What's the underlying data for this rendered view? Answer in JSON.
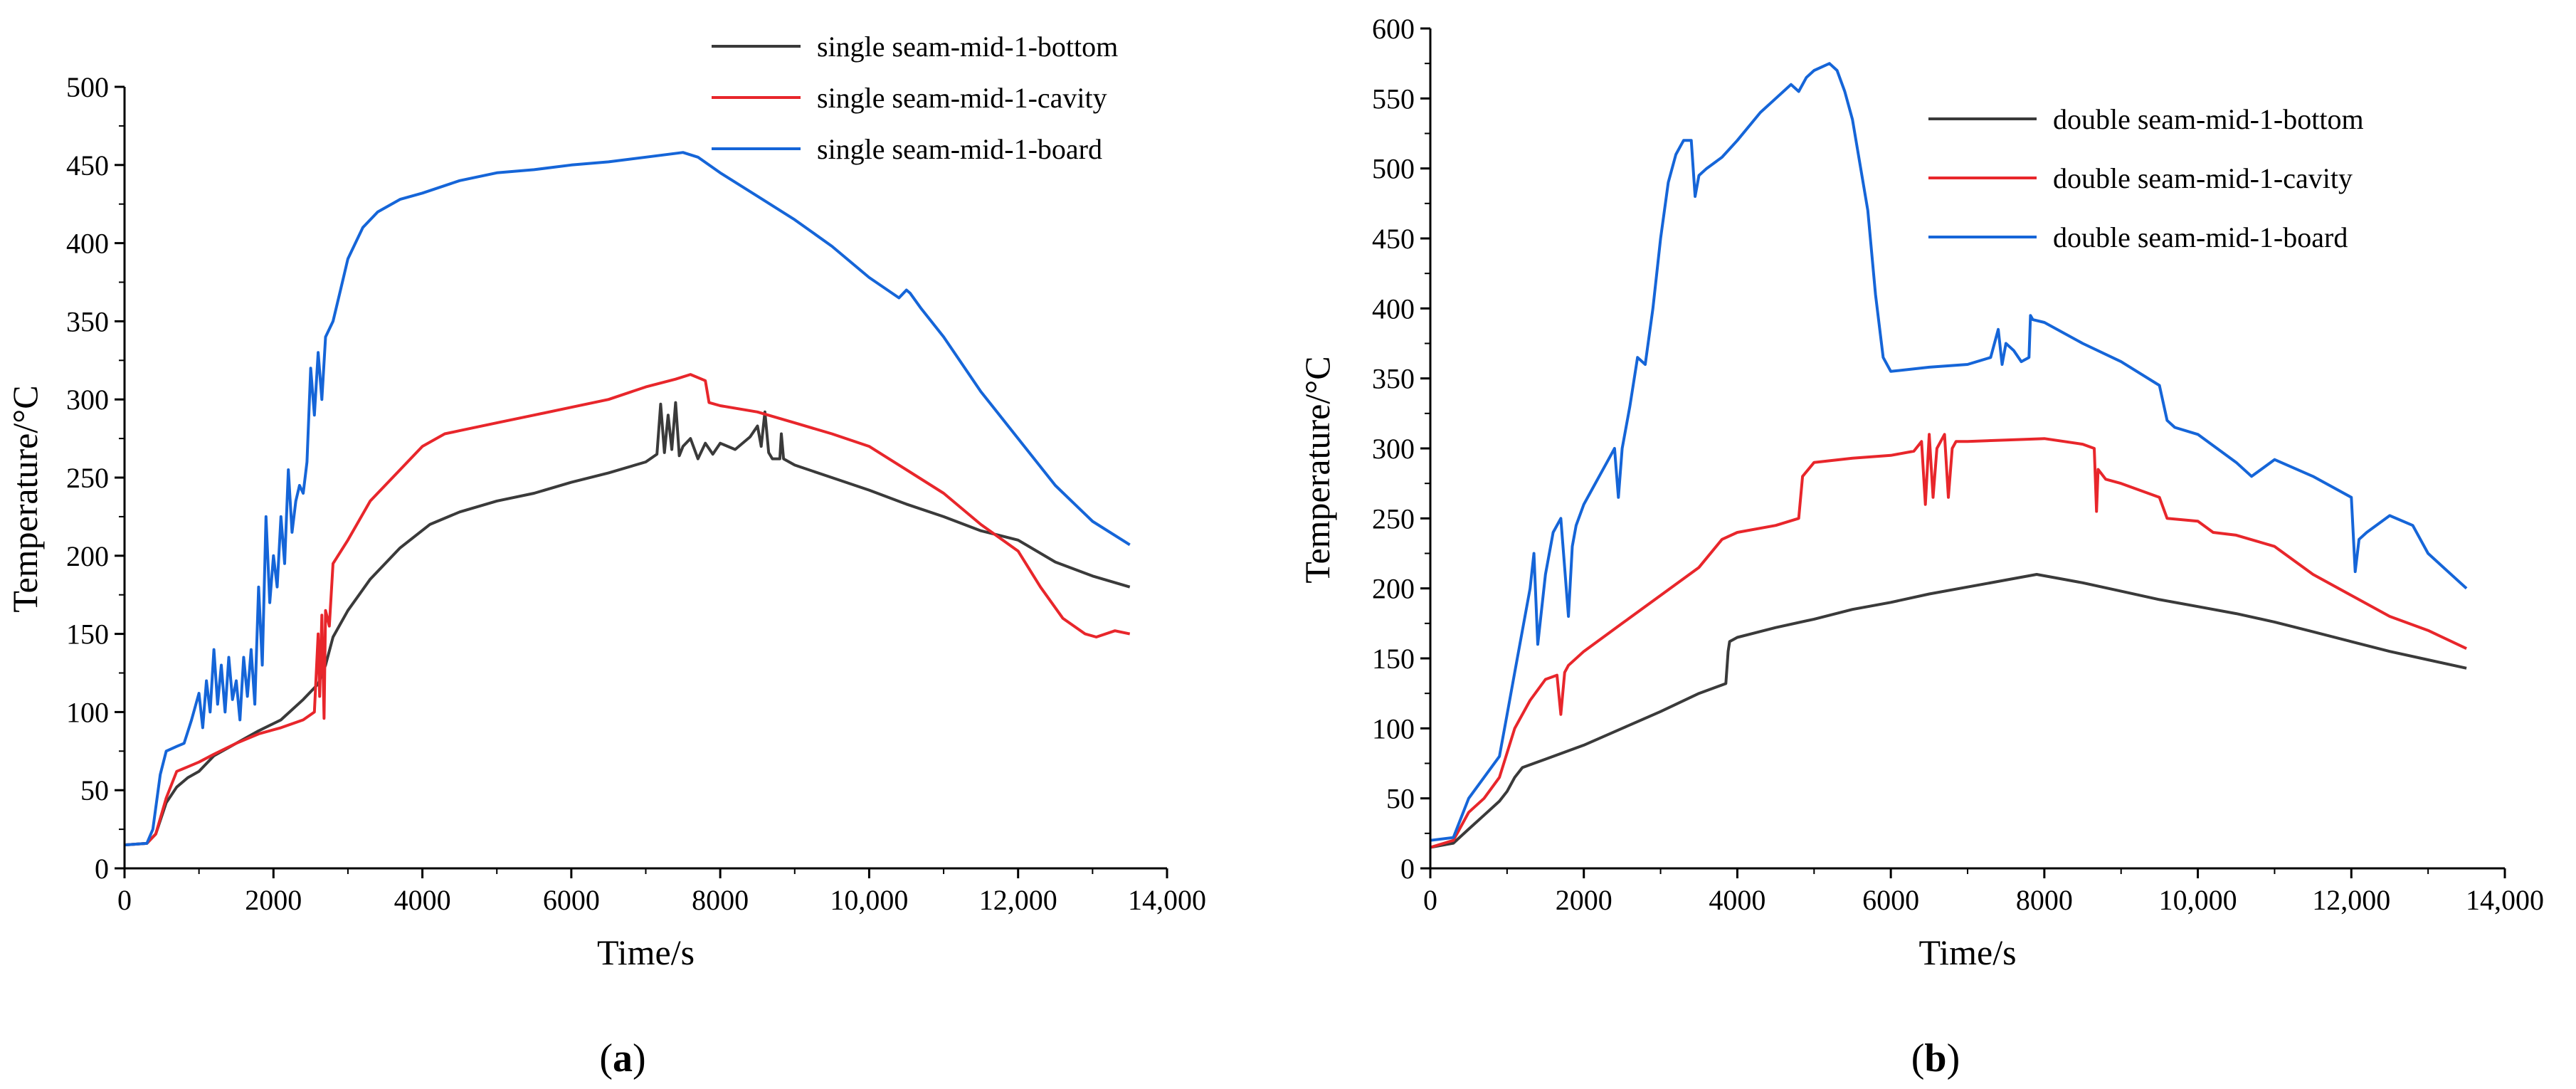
{
  "chart_data": [
    {
      "id": "a",
      "type": "line",
      "panel_label": "(a)",
      "panel_letter": "a",
      "xlabel": "Time/s",
      "ylabel": "Temperature/°C",
      "xlim": [
        0,
        14000
      ],
      "ylim": [
        0,
        500
      ],
      "xticks": [
        0,
        2000,
        4000,
        6000,
        8000,
        10000,
        12000,
        14000
      ],
      "xtick_labels": [
        "0",
        "2000",
        "4000",
        "6000",
        "8000",
        "10,000",
        "12,000",
        "14,000"
      ],
      "yticks": [
        0,
        50,
        100,
        150,
        200,
        250,
        300,
        350,
        400,
        450,
        500
      ],
      "ytick_labels": [
        "0",
        "50",
        "100",
        "150",
        "200",
        "250",
        "300",
        "350",
        "400",
        "450",
        "500"
      ],
      "legend_position": "top-right",
      "series": [
        {
          "name": "single seam-mid-1-bottom",
          "color": "#3a3a3a",
          "x": [
            0,
            300,
            420,
            560,
            700,
            850,
            1000,
            1200,
            1500,
            1800,
            2100,
            2400,
            2600,
            2700,
            2800,
            3000,
            3300,
            3700,
            4100,
            4500,
            5000,
            5500,
            6000,
            6500,
            7000,
            7150,
            7200,
            7250,
            7300,
            7350,
            7400,
            7450,
            7500,
            7600,
            7700,
            7800,
            7900,
            8000,
            8200,
            8400,
            8500,
            8550,
            8600,
            8650,
            8700,
            8800,
            8820,
            8850,
            9000,
            9500,
            10000,
            10500,
            11000,
            11500,
            12000,
            12500,
            13000,
            13500
          ],
          "y": [
            15,
            16,
            22,
            42,
            52,
            58,
            62,
            72,
            80,
            88,
            95,
            108,
            118,
            130,
            148,
            165,
            185,
            205,
            220,
            228,
            235,
            240,
            247,
            253,
            260,
            265,
            297,
            266,
            290,
            268,
            298,
            264,
            270,
            275,
            262,
            272,
            265,
            272,
            268,
            276,
            283,
            270,
            292,
            266,
            262,
            262,
            278,
            262,
            258,
            250,
            242,
            233,
            225,
            216,
            210,
            196,
            187,
            180
          ]
        },
        {
          "name": "single seam-mid-1-cavity",
          "color": "#e8262b",
          "x": [
            0,
            300,
            420,
            560,
            700,
            850,
            1000,
            1200,
            1500,
            1800,
            2100,
            2400,
            2550,
            2600,
            2620,
            2650,
            2680,
            2700,
            2750,
            2800,
            3000,
            3300,
            3700,
            4000,
            4300,
            4500,
            5000,
            5500,
            6000,
            6500,
            7000,
            7400,
            7600,
            7800,
            7850,
            8000,
            8500,
            9000,
            9500,
            10000,
            10500,
            11000,
            11500,
            12000,
            12300,
            12600,
            12900,
            13050,
            13300,
            13500
          ],
          "y": [
            15,
            16,
            22,
            45,
            62,
            65,
            68,
            73,
            80,
            86,
            90,
            95,
            100,
            150,
            110,
            162,
            96,
            165,
            155,
            195,
            210,
            235,
            255,
            270,
            278,
            280,
            285,
            290,
            295,
            300,
            308,
            313,
            316,
            312,
            298,
            296,
            292,
            285,
            278,
            270,
            255,
            240,
            220,
            203,
            180,
            160,
            150,
            148,
            152,
            150
          ]
        },
        {
          "name": "single seam-mid-1-board",
          "color": "#1565d8",
          "x": [
            0,
            300,
            380,
            480,
            560,
            700,
            800,
            900,
            1000,
            1050,
            1100,
            1150,
            1200,
            1250,
            1300,
            1350,
            1400,
            1450,
            1500,
            1550,
            1600,
            1650,
            1700,
            1750,
            1800,
            1850,
            1900,
            1950,
            2000,
            2050,
            2100,
            2150,
            2200,
            2250,
            2300,
            2350,
            2400,
            2450,
            2500,
            2550,
            2600,
            2650,
            2700,
            2800,
            2900,
            3000,
            3200,
            3400,
            3700,
            4000,
            4500,
            5000,
            5500,
            6000,
            6500,
            7000,
            7500,
            7700,
            8000,
            8500,
            9000,
            9500,
            10000,
            10400,
            10500,
            10550,
            10700,
            11000,
            11500,
            12000,
            12500,
            13000,
            13500
          ],
          "y": [
            15,
            16,
            25,
            60,
            75,
            78,
            80,
            95,
            112,
            90,
            120,
            100,
            140,
            105,
            130,
            100,
            135,
            108,
            120,
            95,
            135,
            110,
            140,
            105,
            180,
            130,
            225,
            170,
            200,
            180,
            225,
            195,
            255,
            215,
            235,
            245,
            240,
            260,
            320,
            290,
            330,
            300,
            340,
            350,
            370,
            390,
            410,
            420,
            428,
            432,
            440,
            445,
            447,
            450,
            452,
            455,
            458,
            455,
            445,
            430,
            415,
            398,
            378,
            365,
            370,
            368,
            358,
            340,
            305,
            275,
            245,
            222,
            207
          ]
        }
      ]
    },
    {
      "id": "b",
      "type": "line",
      "panel_label": "(b)",
      "panel_letter": "b",
      "xlabel": "Time/s",
      "ylabel": "Temperature/°C",
      "xlim": [
        0,
        14000
      ],
      "ylim": [
        0,
        600
      ],
      "xticks": [
        0,
        2000,
        4000,
        6000,
        8000,
        10000,
        12000,
        14000
      ],
      "xtick_labels": [
        "0",
        "2000",
        "4000",
        "6000",
        "8000",
        "10,000",
        "12,000",
        "14,000"
      ],
      "yticks": [
        0,
        50,
        100,
        150,
        200,
        250,
        300,
        350,
        400,
        450,
        500,
        550,
        600
      ],
      "ytick_labels": [
        "0",
        "50",
        "100",
        "150",
        "200",
        "250",
        "300",
        "350",
        "400",
        "450",
        "500",
        "550",
        "600"
      ],
      "legend_position": "top-right",
      "series": [
        {
          "name": "double seam-mid-1-bottom",
          "color": "#3a3a3a",
          "x": [
            0,
            300,
            500,
            700,
            900,
            1000,
            1100,
            1200,
            1500,
            2000,
            2500,
            3000,
            3500,
            3850,
            3880,
            3900,
            4000,
            4500,
            5000,
            5500,
            6000,
            6500,
            7000,
            7500,
            7900,
            8200,
            8500,
            9000,
            9500,
            10000,
            10500,
            11000,
            11500,
            12000,
            12500,
            13000,
            13500
          ],
          "y": [
            15,
            18,
            28,
            38,
            48,
            55,
            65,
            72,
            78,
            88,
            100,
            112,
            125,
            132,
            155,
            162,
            165,
            172,
            178,
            185,
            190,
            196,
            201,
            206,
            210,
            207,
            204,
            198,
            192,
            187,
            182,
            176,
            169,
            162,
            155,
            149,
            143
          ]
        },
        {
          "name": "double seam-mid-1-cavity",
          "color": "#e8262b",
          "x": [
            0,
            300,
            500,
            700,
            900,
            1100,
            1300,
            1500,
            1650,
            1700,
            1750,
            1800,
            2000,
            2500,
            3000,
            3500,
            3800,
            4000,
            4500,
            4800,
            4850,
            5000,
            5500,
            6000,
            6300,
            6400,
            6450,
            6500,
            6550,
            6600,
            6700,
            6750,
            6800,
            6850,
            7000,
            7500,
            8000,
            8500,
            8650,
            8680,
            8700,
            8800,
            9000,
            9500,
            9600,
            10000,
            10200,
            10500,
            11000,
            11500,
            12000,
            12500,
            13000,
            13500
          ],
          "y": [
            15,
            20,
            40,
            50,
            65,
            100,
            120,
            135,
            138,
            110,
            140,
            145,
            155,
            175,
            195,
            215,
            235,
            240,
            245,
            250,
            280,
            290,
            293,
            295,
            298,
            305,
            260,
            310,
            265,
            300,
            310,
            265,
            300,
            305,
            305,
            306,
            307,
            303,
            300,
            255,
            285,
            278,
            275,
            265,
            250,
            248,
            240,
            238,
            230,
            210,
            195,
            180,
            170,
            157
          ]
        },
        {
          "name": "double seam-mid-1-board",
          "color": "#1565d8",
          "x": [
            0,
            300,
            500,
            700,
            900,
            1000,
            1100,
            1200,
            1300,
            1350,
            1400,
            1500,
            1600,
            1700,
            1800,
            1850,
            1900,
            2000,
            2100,
            2200,
            2300,
            2400,
            2450,
            2500,
            2600,
            2700,
            2800,
            2900,
            3000,
            3100,
            3200,
            3300,
            3400,
            3450,
            3500,
            3600,
            3800,
            4000,
            4300,
            4500,
            4700,
            4800,
            4900,
            5000,
            5200,
            5300,
            5400,
            5500,
            5700,
            5800,
            5900,
            6000,
            6500,
            7000,
            7300,
            7400,
            7450,
            7500,
            7600,
            7700,
            7800,
            7820,
            7850,
            8000,
            8500,
            9000,
            9500,
            9600,
            9700,
            10000,
            10500,
            10700,
            11000,
            11500,
            12000,
            12050,
            12100,
            12200,
            12500,
            12800,
            13000,
            13500
          ],
          "y": [
            20,
            22,
            50,
            65,
            80,
            110,
            140,
            170,
            200,
            225,
            160,
            210,
            240,
            250,
            180,
            230,
            245,
            260,
            270,
            280,
            290,
            300,
            265,
            300,
            330,
            365,
            360,
            400,
            450,
            490,
            510,
            520,
            520,
            480,
            495,
            500,
            508,
            520,
            540,
            550,
            560,
            555,
            565,
            570,
            575,
            570,
            555,
            535,
            470,
            410,
            365,
            355,
            358,
            360,
            365,
            385,
            360,
            375,
            370,
            362,
            365,
            395,
            392,
            390,
            375,
            362,
            345,
            320,
            315,
            310,
            290,
            280,
            292,
            280,
            265,
            212,
            235,
            240,
            252,
            245,
            225,
            200
          ]
        }
      ]
    }
  ]
}
